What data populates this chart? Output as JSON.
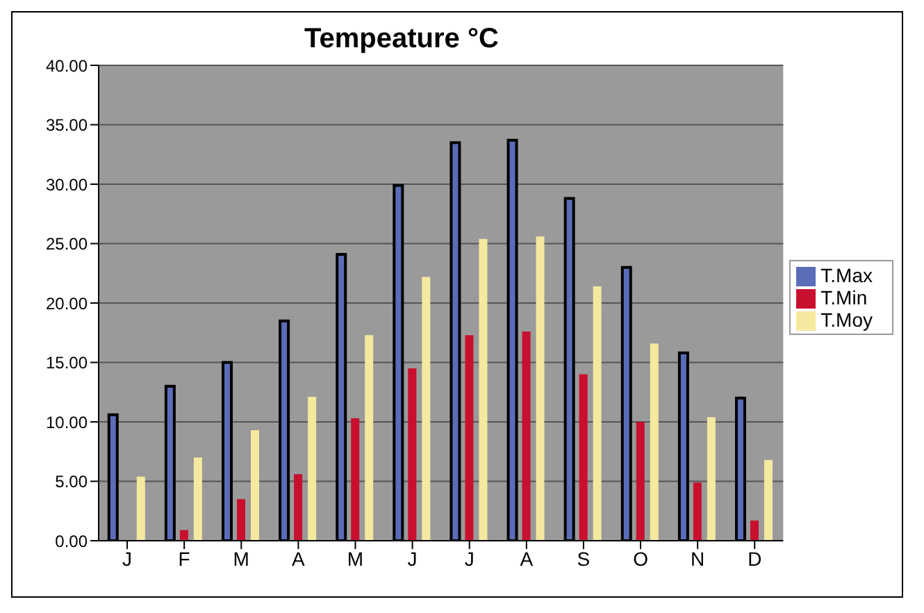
{
  "chart_data": {
    "type": "bar",
    "title": "Tempeature °C",
    "categories": [
      "J",
      "F",
      "M",
      "A",
      "M",
      "J",
      "J",
      "A",
      "S",
      "O",
      "N",
      "D"
    ],
    "series": [
      {
        "name": "T.Max",
        "color": "#5b6cb8",
        "values": [
          10.6,
          13.0,
          15.0,
          18.5,
          24.1,
          29.9,
          33.5,
          33.7,
          28.8,
          23.0,
          15.8,
          12.0
        ]
      },
      {
        "name": "T.Min",
        "color": "#c8102e",
        "values": [
          0,
          0.9,
          3.5,
          5.6,
          10.3,
          14.5,
          17.3,
          17.6,
          14.0,
          10.0,
          4.9,
          1.7
        ]
      },
      {
        "name": "T.Moy",
        "color": "#f5e9a0",
        "values": [
          5.4,
          7.0,
          9.3,
          12.1,
          17.3,
          22.2,
          25.4,
          25.6,
          21.4,
          16.6,
          10.4,
          6.8
        ]
      }
    ],
    "ylim": [
      0,
      40
    ],
    "yticks": [
      {
        "value": 0,
        "label": "0.00"
      },
      {
        "value": 5,
        "label": "5.00"
      },
      {
        "value": 10,
        "label": "10.00"
      },
      {
        "value": 15,
        "label": "15.00"
      },
      {
        "value": 20,
        "label": "20.00"
      },
      {
        "value": 25,
        "label": "25.00"
      },
      {
        "value": 30,
        "label": "30.00"
      },
      {
        "value": 35,
        "label": "35.00"
      },
      {
        "value": 40,
        "label": "40.00"
      }
    ],
    "grid": "y",
    "legend": "right"
  }
}
